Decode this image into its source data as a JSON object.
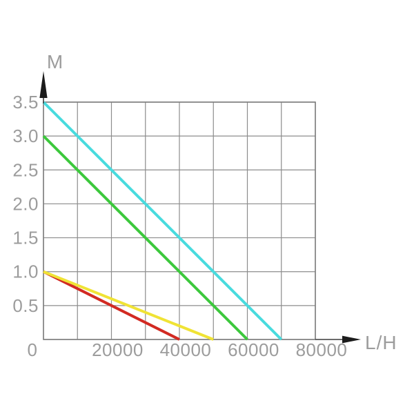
{
  "chart_data": {
    "type": "line",
    "title": "",
    "xlabel": "L/H",
    "ylabel": "M",
    "xlim": [
      0,
      80000
    ],
    "ylim": [
      0,
      3.5
    ],
    "x_grid_step": 10000,
    "y_grid_step": 0.5,
    "grid": true,
    "legend": false,
    "x_ticks": [
      {
        "value": 0,
        "label": "0"
      },
      {
        "value": 20000,
        "label": "20000"
      },
      {
        "value": 40000,
        "label": "40000"
      },
      {
        "value": 60000,
        "label": "60000"
      },
      {
        "value": 80000,
        "label": "80000"
      }
    ],
    "y_ticks": [
      {
        "value": 0.5,
        "label": "0.5"
      },
      {
        "value": 1.0,
        "label": "1.0"
      },
      {
        "value": 1.5,
        "label": "1.5"
      },
      {
        "value": 2.0,
        "label": "2.0"
      },
      {
        "value": 2.5,
        "label": "2.5"
      },
      {
        "value": 3.0,
        "label": "3.0"
      },
      {
        "value": 3.5,
        "label": "3.5"
      }
    ],
    "series": [
      {
        "name": "red",
        "color": "#d22a22",
        "points": [
          [
            0,
            1.0
          ],
          [
            40000,
            0
          ]
        ]
      },
      {
        "name": "yellow",
        "color": "#f0e335",
        "points": [
          [
            0,
            1.0
          ],
          [
            50000,
            0
          ]
        ]
      },
      {
        "name": "green",
        "color": "#3cc83c",
        "points": [
          [
            0,
            3.0
          ],
          [
            60000,
            0
          ]
        ]
      },
      {
        "name": "cyan",
        "color": "#48dbde",
        "points": [
          [
            0,
            3.5
          ],
          [
            70000,
            0
          ]
        ]
      }
    ]
  },
  "colors": {
    "grid": "#8c8c8c",
    "border": "#7d7d7d",
    "arrow": "#1c1c1c",
    "axis_extension": "#3a3a3a",
    "label_text": "#9c9c9c",
    "background": "#ffffff"
  }
}
